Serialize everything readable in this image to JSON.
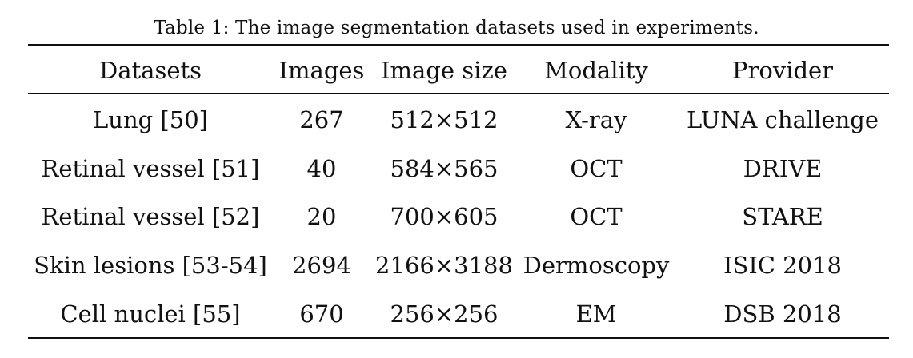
{
  "caption": "Table 1: The image segmentation datasets used in experiments.",
  "table": {
    "headers": [
      "Datasets",
      "Images",
      "Image size",
      "Modality",
      "Provider"
    ],
    "rows": [
      [
        "Lung [50]",
        "267",
        "512×512",
        "X-ray",
        "LUNA challenge"
      ],
      [
        "Retinal vessel [51]",
        "40",
        "584×565",
        "OCT",
        "DRIVE"
      ],
      [
        "Retinal vessel [52]",
        "20",
        "700×605",
        "OCT",
        "STARE"
      ],
      [
        "Skin lesions [53-54]",
        "2694",
        "2166×3188",
        "Dermoscopy",
        "ISIC 2018"
      ],
      [
        "Cell nuclei [55]",
        "670",
        "256×256",
        "EM",
        "DSB 2018"
      ]
    ]
  }
}
